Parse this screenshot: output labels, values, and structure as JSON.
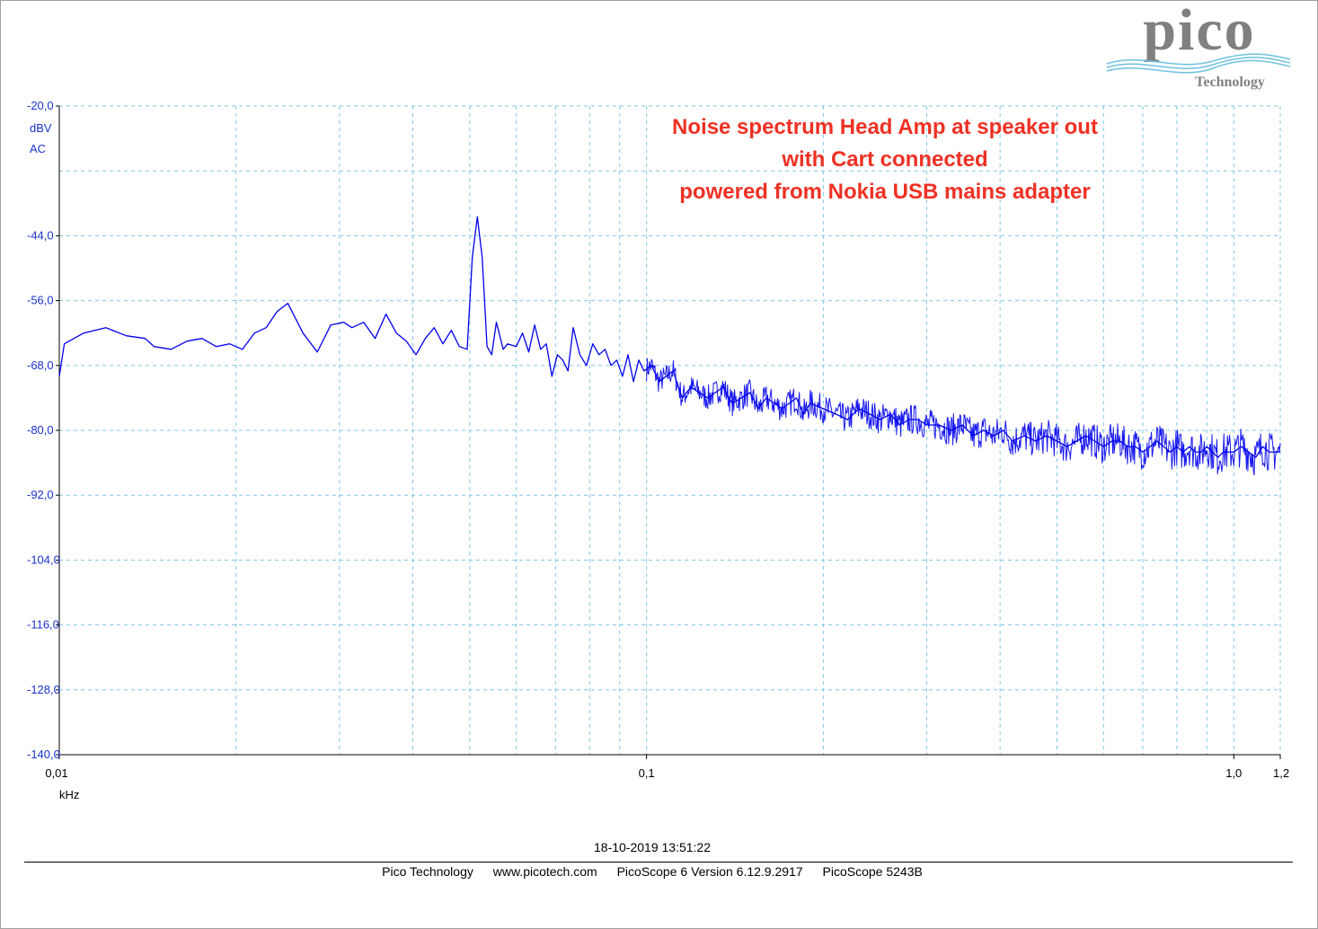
{
  "chart_data": {
    "type": "line",
    "title": "Noise spectrum Head Amp at speaker out with Cart connected powered from Nokia USB mains adapter",
    "title_lines": [
      "Noise spectrum Head Amp at speaker out",
      "with Cart connected",
      "powered from Nokia USB mains adapter"
    ],
    "y_unit_lines": [
      "dBV",
      "AC"
    ],
    "xlabel": "kHz",
    "x_scale": "log",
    "xlim": [
      0.01,
      1.2
    ],
    "ylim": [
      -140,
      -20
    ],
    "y_ticks": [
      -20,
      -44,
      -56,
      -68,
      -80,
      -92,
      -104,
      -116,
      -128,
      -140
    ],
    "y_tick_labels": [
      "-20,0",
      "-44,0",
      "-56,0",
      "-68,0",
      "-80,0",
      "-92,0",
      "-104,0",
      "-116,0",
      "-128,0",
      "-140,0"
    ],
    "x_tick_labels": [
      {
        "value": 0.01,
        "label": "0,01"
      },
      {
        "value": 0.1,
        "label": "0,1"
      },
      {
        "value": 1.0,
        "label": "1,0"
      },
      {
        "value": 1.2,
        "label": "1,2"
      }
    ],
    "grid": true,
    "series": [
      {
        "color": "#0000ee",
        "x": [
          0.01,
          0.0102,
          0.011,
          0.012,
          0.013,
          0.014,
          0.0145,
          0.0155,
          0.0165,
          0.0175,
          0.0185,
          0.0195,
          0.0205,
          0.0215,
          0.0225,
          0.0235,
          0.0245,
          0.026,
          0.0275,
          0.029,
          0.0305,
          0.0315,
          0.033,
          0.0345,
          0.036,
          0.0375,
          0.039,
          0.0405,
          0.042,
          0.0435,
          0.045,
          0.0465,
          0.048,
          0.0495,
          0.0505,
          0.0515,
          0.0525,
          0.0535,
          0.0545,
          0.0555,
          0.057,
          0.058,
          0.06,
          0.0615,
          0.063,
          0.0645,
          0.066,
          0.0675,
          0.069,
          0.0705,
          0.072,
          0.0735,
          0.075,
          0.077,
          0.079,
          0.081,
          0.083,
          0.085,
          0.087,
          0.089,
          0.091,
          0.093,
          0.095,
          0.097,
          0.099,
          0.102,
          0.105,
          0.108,
          0.111,
          0.115,
          0.119,
          0.123,
          0.127,
          0.131,
          0.135,
          0.14,
          0.145,
          0.15,
          0.155,
          0.16,
          0.165,
          0.17,
          0.175,
          0.18,
          0.185,
          0.19,
          0.2,
          0.21,
          0.22,
          0.23,
          0.24,
          0.25,
          0.26,
          0.27,
          0.28,
          0.29,
          0.3,
          0.315,
          0.33,
          0.345,
          0.36,
          0.375,
          0.39,
          0.405,
          0.42,
          0.44,
          0.46,
          0.48,
          0.5,
          0.52,
          0.54,
          0.56,
          0.58,
          0.6,
          0.62,
          0.64,
          0.66,
          0.68,
          0.7,
          0.72,
          0.74,
          0.76,
          0.78,
          0.8,
          0.82,
          0.84,
          0.86,
          0.88,
          0.9,
          0.92,
          0.94,
          0.96,
          0.98,
          1.0,
          1.03,
          1.06,
          1.09,
          1.12,
          1.15,
          1.18,
          1.2
        ],
        "y": [
          -70,
          -64,
          -62,
          -61,
          -62.5,
          -63,
          -64.5,
          -65,
          -63.5,
          -63,
          -64.5,
          -64,
          -65,
          -62,
          -61,
          -58,
          -56.5,
          -62,
          -65.5,
          -60.5,
          -60,
          -61,
          -60,
          -63,
          -58.5,
          -62,
          -63.5,
          -66,
          -63,
          -61,
          -64,
          -61.5,
          -64.5,
          -65,
          -48,
          -40.5,
          -48,
          -64.5,
          -66,
          -60,
          -65,
          -64,
          -64.5,
          -62,
          -65.5,
          -60.5,
          -65,
          -64,
          -70,
          -66,
          -67,
          -69,
          -61,
          -66,
          -68,
          -64,
          -66,
          -65,
          -68,
          -67,
          -70,
          -66,
          -71,
          -67,
          -69,
          -68,
          -71,
          -70,
          -69,
          -74,
          -72,
          -73,
          -74,
          -73,
          -72,
          -75,
          -74,
          -73,
          -76,
          -74,
          -75,
          -76,
          -75,
          -74,
          -77,
          -75,
          -76,
          -77,
          -78,
          -76,
          -77,
          -78,
          -77,
          -79,
          -78,
          -78,
          -79,
          -79,
          -80,
          -79,
          -81,
          -80,
          -81,
          -80,
          -82,
          -81,
          -82,
          -81,
          -82,
          -83,
          -82,
          -81,
          -82,
          -83,
          -82,
          -82,
          -83,
          -83,
          -84,
          -83,
          -82,
          -83,
          -84,
          -83,
          -84,
          -83,
          -84,
          -84,
          -83,
          -84,
          -85,
          -84,
          -84,
          -84,
          -83,
          -84,
          -85,
          -83,
          -84,
          -84,
          -84
        ]
      }
    ]
  },
  "logo": {
    "word": "pico",
    "sub": "Technology"
  },
  "footer": {
    "timestamp": "18-10-2019 13:51:22",
    "items": [
      "Pico Technology",
      "www.picotech.com",
      "PicoScope 6 Version 6.12.9.2917",
      "PicoScope 5243B"
    ]
  }
}
